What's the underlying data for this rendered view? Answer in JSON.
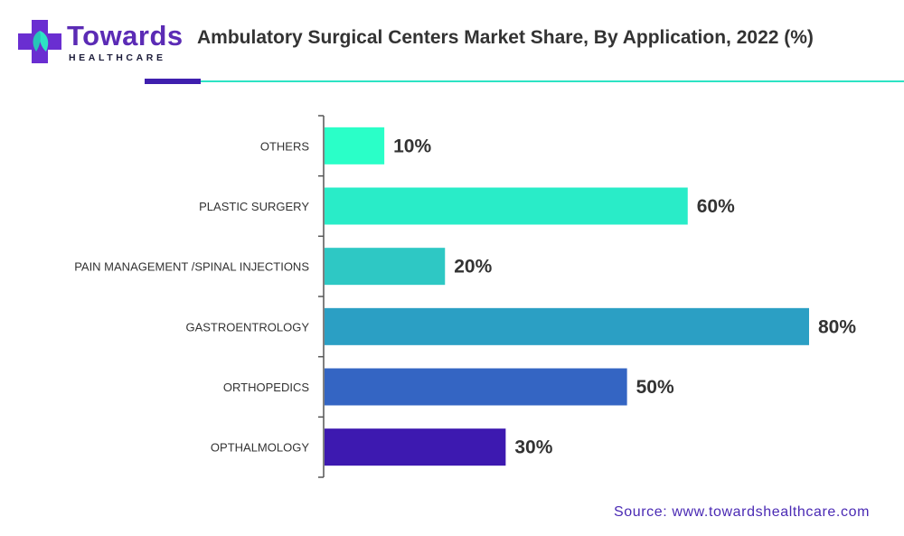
{
  "logo": {
    "word": "Towards",
    "sub": "HEALTHCARE"
  },
  "title": "Ambulatory Surgical Centers Market Share, By Application, 2022 (%)",
  "source": "Source: www.towardshealthcare.com",
  "chart_data": {
    "type": "bar",
    "orientation": "horizontal",
    "title": "Ambulatory Surgical Centers Market Share, By Application, 2022 (%)",
    "categories": [
      "OTHERS",
      "PLASTIC SURGERY",
      "PAIN MANAGEMENT /SPINAL INJECTIONS",
      "GASTROENTROLOGY",
      "ORTHOPEDICS",
      "OPTHALMOLOGY"
    ],
    "values": [
      10,
      60,
      20,
      80,
      50,
      30
    ],
    "data_labels": [
      "10%",
      "60%",
      "20%",
      "80%",
      "50%",
      "30%"
    ],
    "colors": [
      "#2affc8",
      "#29ecc8",
      "#2ec8c4",
      "#2b9fc4",
      "#3465c3",
      "#3d19b0"
    ],
    "xlim": [
      0,
      80
    ],
    "grid": false,
    "legend": "none"
  }
}
